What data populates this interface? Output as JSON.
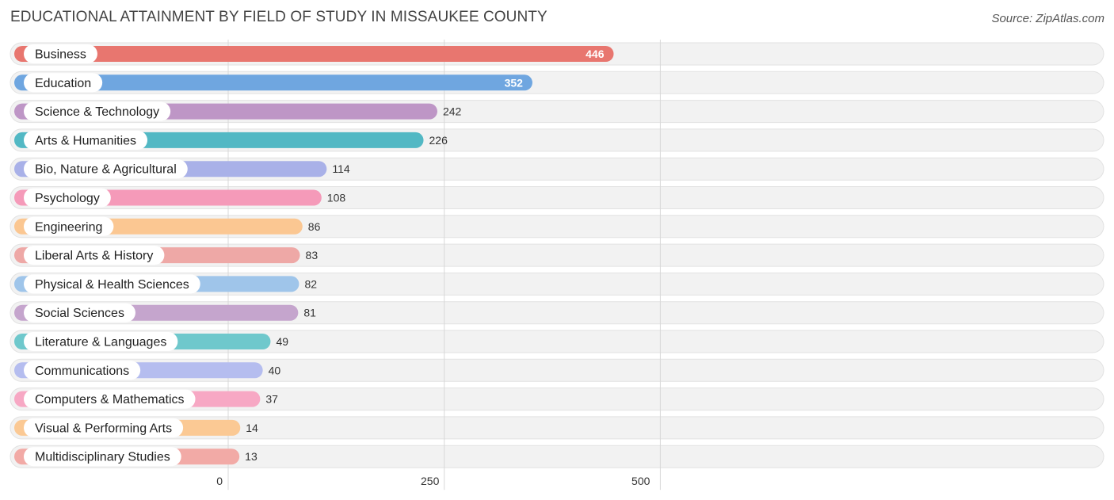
{
  "chart_data": {
    "type": "bar",
    "orientation": "horizontal",
    "title": "EDUCATIONAL ATTAINMENT BY FIELD OF STUDY IN MISSAUKEE COUNTY",
    "source": "Source: ZipAtlas.com",
    "categories": [
      "Business",
      "Education",
      "Science & Technology",
      "Arts & Humanities",
      "Bio, Nature & Agricultural",
      "Psychology",
      "Engineering",
      "Liberal Arts & History",
      "Physical & Health Sciences",
      "Social Sciences",
      "Literature & Languages",
      "Communications",
      "Computers & Mathematics",
      "Visual & Performing Arts",
      "Multidisciplinary Studies"
    ],
    "values": [
      446,
      352,
      242,
      226,
      114,
      108,
      86,
      83,
      82,
      81,
      49,
      40,
      37,
      14,
      13
    ],
    "colors": [
      "#e8766f",
      "#6fa6e0",
      "#be96c6",
      "#52b8c4",
      "#a9b1e8",
      "#f59ab9",
      "#fbc792",
      "#eea8a6",
      "#9fc5ea",
      "#c5a5cd",
      "#6fc8cc",
      "#b5bdef",
      "#f7a8c4",
      "#fbc994",
      "#f2aaa6"
    ],
    "xlim": [
      0,
      500
    ],
    "ticks": [
      {
        "value": 0,
        "label": "0"
      },
      {
        "value": 250,
        "label": "250"
      },
      {
        "value": 500,
        "label": "500"
      }
    ],
    "xlabel": "",
    "ylabel": "",
    "grid": true
  }
}
